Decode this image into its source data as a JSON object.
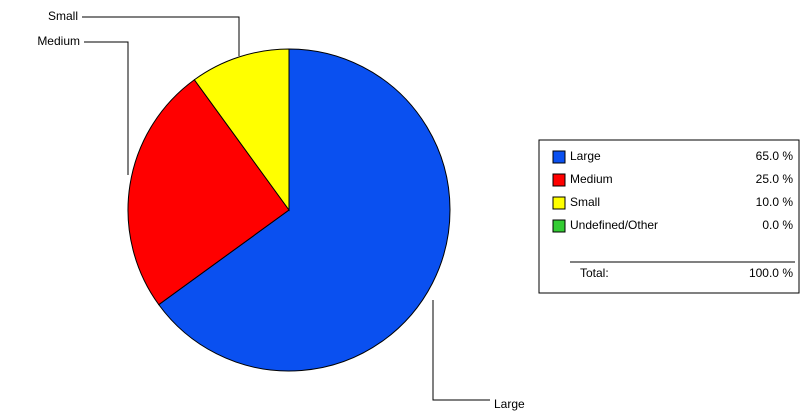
{
  "chart_data": {
    "type": "pie",
    "categories": [
      "Large",
      "Medium",
      "Small",
      "Undefined/Other"
    ],
    "values": [
      65,
      25,
      10,
      0
    ],
    "value_labels": [
      "65.0 %",
      "25.0 %",
      "10.0 %",
      "0.0 %"
    ],
    "colors": [
      "#0a50f0",
      "#ff0000",
      "#ffff00",
      "#33cc33"
    ],
    "total_label": "Total:",
    "total_value_label": "100.0 %"
  }
}
